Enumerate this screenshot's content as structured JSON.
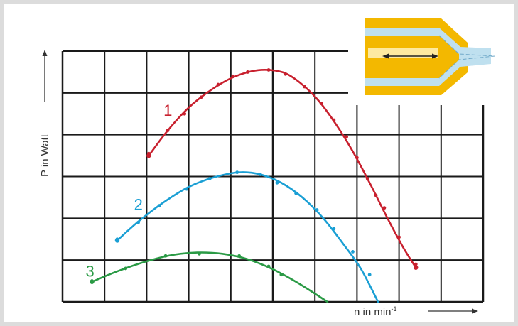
{
  "chart_data": {
    "type": "line",
    "title": "",
    "xlabel": "n in min",
    "xlabel_superscript": "-1",
    "ylabel": "P in Watt",
    "xlim": [
      0,
      10
    ],
    "ylim": [
      0,
      6
    ],
    "grid": true,
    "series": [
      {
        "name": "1",
        "color": "#c8202e",
        "points": [
          [
            2.05,
            3.55
          ],
          [
            2.5,
            4.1
          ],
          [
            2.9,
            4.5
          ],
          [
            3.3,
            4.9
          ],
          [
            3.7,
            5.2
          ],
          [
            4.05,
            5.4
          ],
          [
            4.4,
            5.5
          ],
          [
            4.9,
            5.55
          ],
          [
            5.3,
            5.45
          ],
          [
            5.75,
            5.15
          ],
          [
            6.15,
            4.75
          ],
          [
            6.45,
            4.35
          ],
          [
            6.75,
            3.95
          ],
          [
            7.0,
            3.45
          ],
          [
            7.25,
            2.95
          ],
          [
            7.45,
            2.55
          ],
          [
            7.65,
            2.25
          ],
          [
            8.0,
            1.55
          ],
          [
            8.4,
            0.9
          ]
        ],
        "curve": [
          [
            2.05,
            3.5
          ],
          [
            2.5,
            4.1
          ],
          [
            3.0,
            4.65
          ],
          [
            3.5,
            5.05
          ],
          [
            4.0,
            5.35
          ],
          [
            4.5,
            5.52
          ],
          [
            4.9,
            5.55
          ],
          [
            5.3,
            5.47
          ],
          [
            5.7,
            5.2
          ],
          [
            6.1,
            4.8
          ],
          [
            6.5,
            4.25
          ],
          [
            6.9,
            3.6
          ],
          [
            7.3,
            2.85
          ],
          [
            7.7,
            2.05
          ],
          [
            8.1,
            1.3
          ],
          [
            8.4,
            0.82
          ]
        ]
      },
      {
        "name": "2",
        "color": "#1a9fd4",
        "points": [
          [
            1.3,
            1.5
          ],
          [
            1.8,
            1.9
          ],
          [
            2.3,
            2.3
          ],
          [
            2.95,
            2.7
          ],
          [
            3.5,
            2.95
          ],
          [
            4.15,
            3.1
          ],
          [
            4.7,
            3.05
          ],
          [
            5.1,
            2.85
          ],
          [
            5.55,
            2.6
          ],
          [
            6.05,
            2.2
          ],
          [
            6.45,
            1.75
          ],
          [
            6.9,
            1.2
          ],
          [
            7.3,
            0.65
          ]
        ],
        "curve": [
          [
            1.3,
            1.47
          ],
          [
            1.8,
            1.92
          ],
          [
            2.4,
            2.38
          ],
          [
            3.0,
            2.75
          ],
          [
            3.6,
            2.98
          ],
          [
            4.2,
            3.1
          ],
          [
            4.7,
            3.05
          ],
          [
            5.2,
            2.85
          ],
          [
            5.7,
            2.5
          ],
          [
            6.2,
            2.0
          ],
          [
            6.7,
            1.35
          ],
          [
            7.1,
            0.78
          ],
          [
            7.5,
            0.0
          ]
        ]
      },
      {
        "name": "3",
        "color": "#2a9a45",
        "points": [
          [
            0.7,
            0.5
          ],
          [
            1.5,
            0.8
          ],
          [
            2.45,
            1.1
          ],
          [
            3.25,
            1.15
          ],
          [
            4.2,
            1.1
          ],
          [
            4.9,
            0.85
          ],
          [
            5.2,
            0.65
          ]
        ],
        "curve": [
          [
            0.7,
            0.48
          ],
          [
            1.3,
            0.73
          ],
          [
            2.0,
            0.97
          ],
          [
            2.6,
            1.12
          ],
          [
            3.2,
            1.18
          ],
          [
            3.8,
            1.15
          ],
          [
            4.4,
            1.02
          ],
          [
            5.0,
            0.78
          ],
          [
            5.6,
            0.45
          ],
          [
            6.3,
            0.0
          ]
        ]
      }
    ],
    "series_label_positions": [
      [
        2.4,
        4.45
      ],
      [
        1.7,
        2.2
      ],
      [
        0.55,
        0.6
      ]
    ]
  },
  "inset": {
    "name": "nozzle-diagram",
    "colors": {
      "body": "#f3b800",
      "body_edge": "#e8a400",
      "core": "#fde9a0",
      "channel": "#bfe0ef",
      "arrow": "#222222",
      "dash": "#6fa8c8"
    }
  }
}
